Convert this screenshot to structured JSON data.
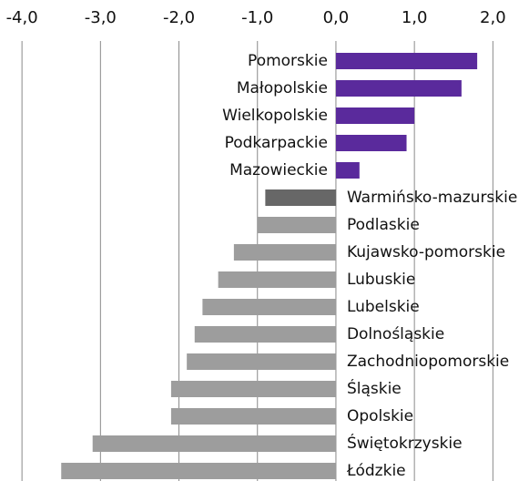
{
  "chart_data": {
    "type": "bar",
    "orientation": "horizontal",
    "categories": [
      "Pomorskie",
      "Małopolskie",
      "Wielkopolskie",
      "Podkarpackie",
      "Mazowieckie",
      "Warmińsko-mazurskie",
      "Podlaskie",
      "Kujawsko-pomorskie",
      "Lubuskie",
      "Lubelskie",
      "Dolnośląskie",
      "Zachodniopomorskie",
      "Śląskie",
      "Opolskie",
      "Świętokrzyskie",
      "Łódzkie"
    ],
    "values": [
      1.8,
      1.6,
      1.0,
      0.9,
      0.3,
      -0.9,
      -1.0,
      -1.3,
      -1.5,
      -1.7,
      -1.8,
      -1.9,
      -2.1,
      -2.1,
      -3.1,
      -3.5
    ],
    "colors": [
      "#5a2a9c",
      "#5a2a9c",
      "#5a2a9c",
      "#5a2a9c",
      "#5a2a9c",
      "#676767",
      "#9d9d9d",
      "#9d9d9d",
      "#9d9d9d",
      "#9d9d9d",
      "#9d9d9d",
      "#9d9d9d",
      "#9d9d9d",
      "#9d9d9d",
      "#9d9d9d",
      "#9d9d9d"
    ],
    "xlim": [
      -4.28,
      2.46
    ],
    "xticks": [
      {
        "value": -4,
        "label": "-4,0"
      },
      {
        "value": -3,
        "label": "-3,0"
      },
      {
        "value": -2,
        "label": "-2,0"
      },
      {
        "value": -1,
        "label": "-1,0"
      },
      {
        "value": 0,
        "label": "0,0"
      },
      {
        "value": 1,
        "label": "1,0"
      },
      {
        "value": 2,
        "label": "2,0"
      }
    ],
    "grid": true
  }
}
